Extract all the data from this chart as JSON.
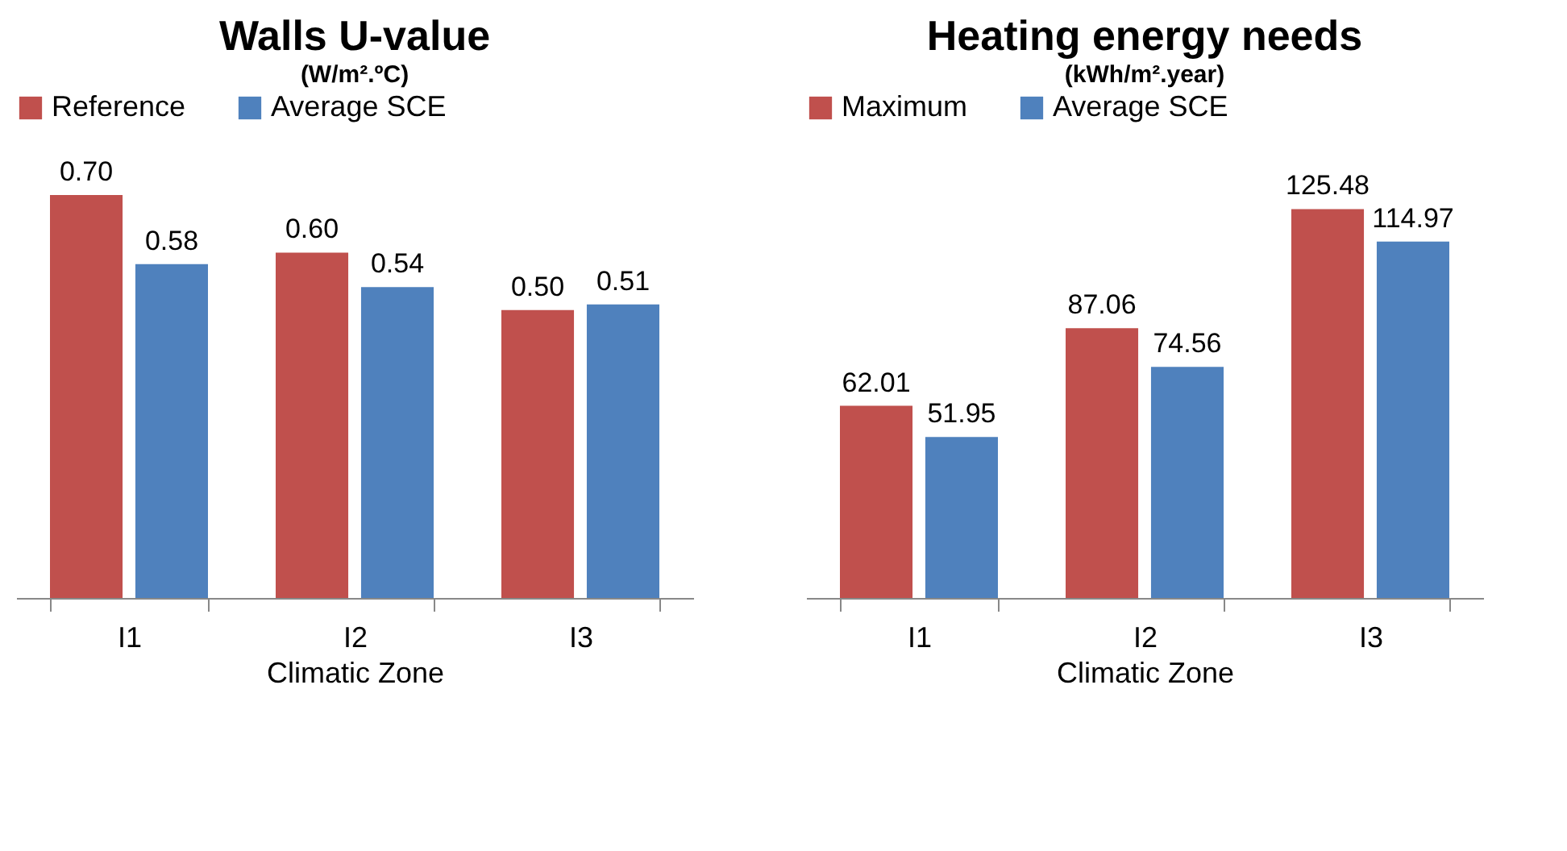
{
  "chart_data": [
    {
      "type": "bar",
      "title": "Walls U-value",
      "subtitle": "(W/m².ºC)",
      "xlabel": "Climatic Zone",
      "categories": [
        "I1",
        "I2",
        "I3"
      ],
      "series": [
        {
          "name": "Reference",
          "color": "#c0504d",
          "values": [
            0.7,
            0.6,
            0.5
          ],
          "value_labels": [
            "0.70",
            "0.60",
            "0.50"
          ]
        },
        {
          "name": "Average SCE",
          "color": "#4f81bd",
          "values": [
            0.58,
            0.54,
            0.51
          ],
          "value_labels": [
            "0.58",
            "0.54",
            "0.51"
          ]
        }
      ],
      "legend": "top",
      "grid": false
    },
    {
      "type": "bar",
      "title": "Heating energy needs",
      "subtitle": "(kWh/m².year)",
      "xlabel": "Climatic Zone",
      "categories": [
        "I1",
        "I2",
        "I3"
      ],
      "series": [
        {
          "name": "Maximum",
          "color": "#c0504d",
          "values": [
            62.01,
            87.06,
            125.48
          ]
        },
        {
          "name": "Average SCE",
          "color": "#4f81bd",
          "values": [
            51.95,
            74.56,
            114.97
          ]
        }
      ],
      "data_labels": true,
      "legend": "top",
      "grid": false
    }
  ]
}
